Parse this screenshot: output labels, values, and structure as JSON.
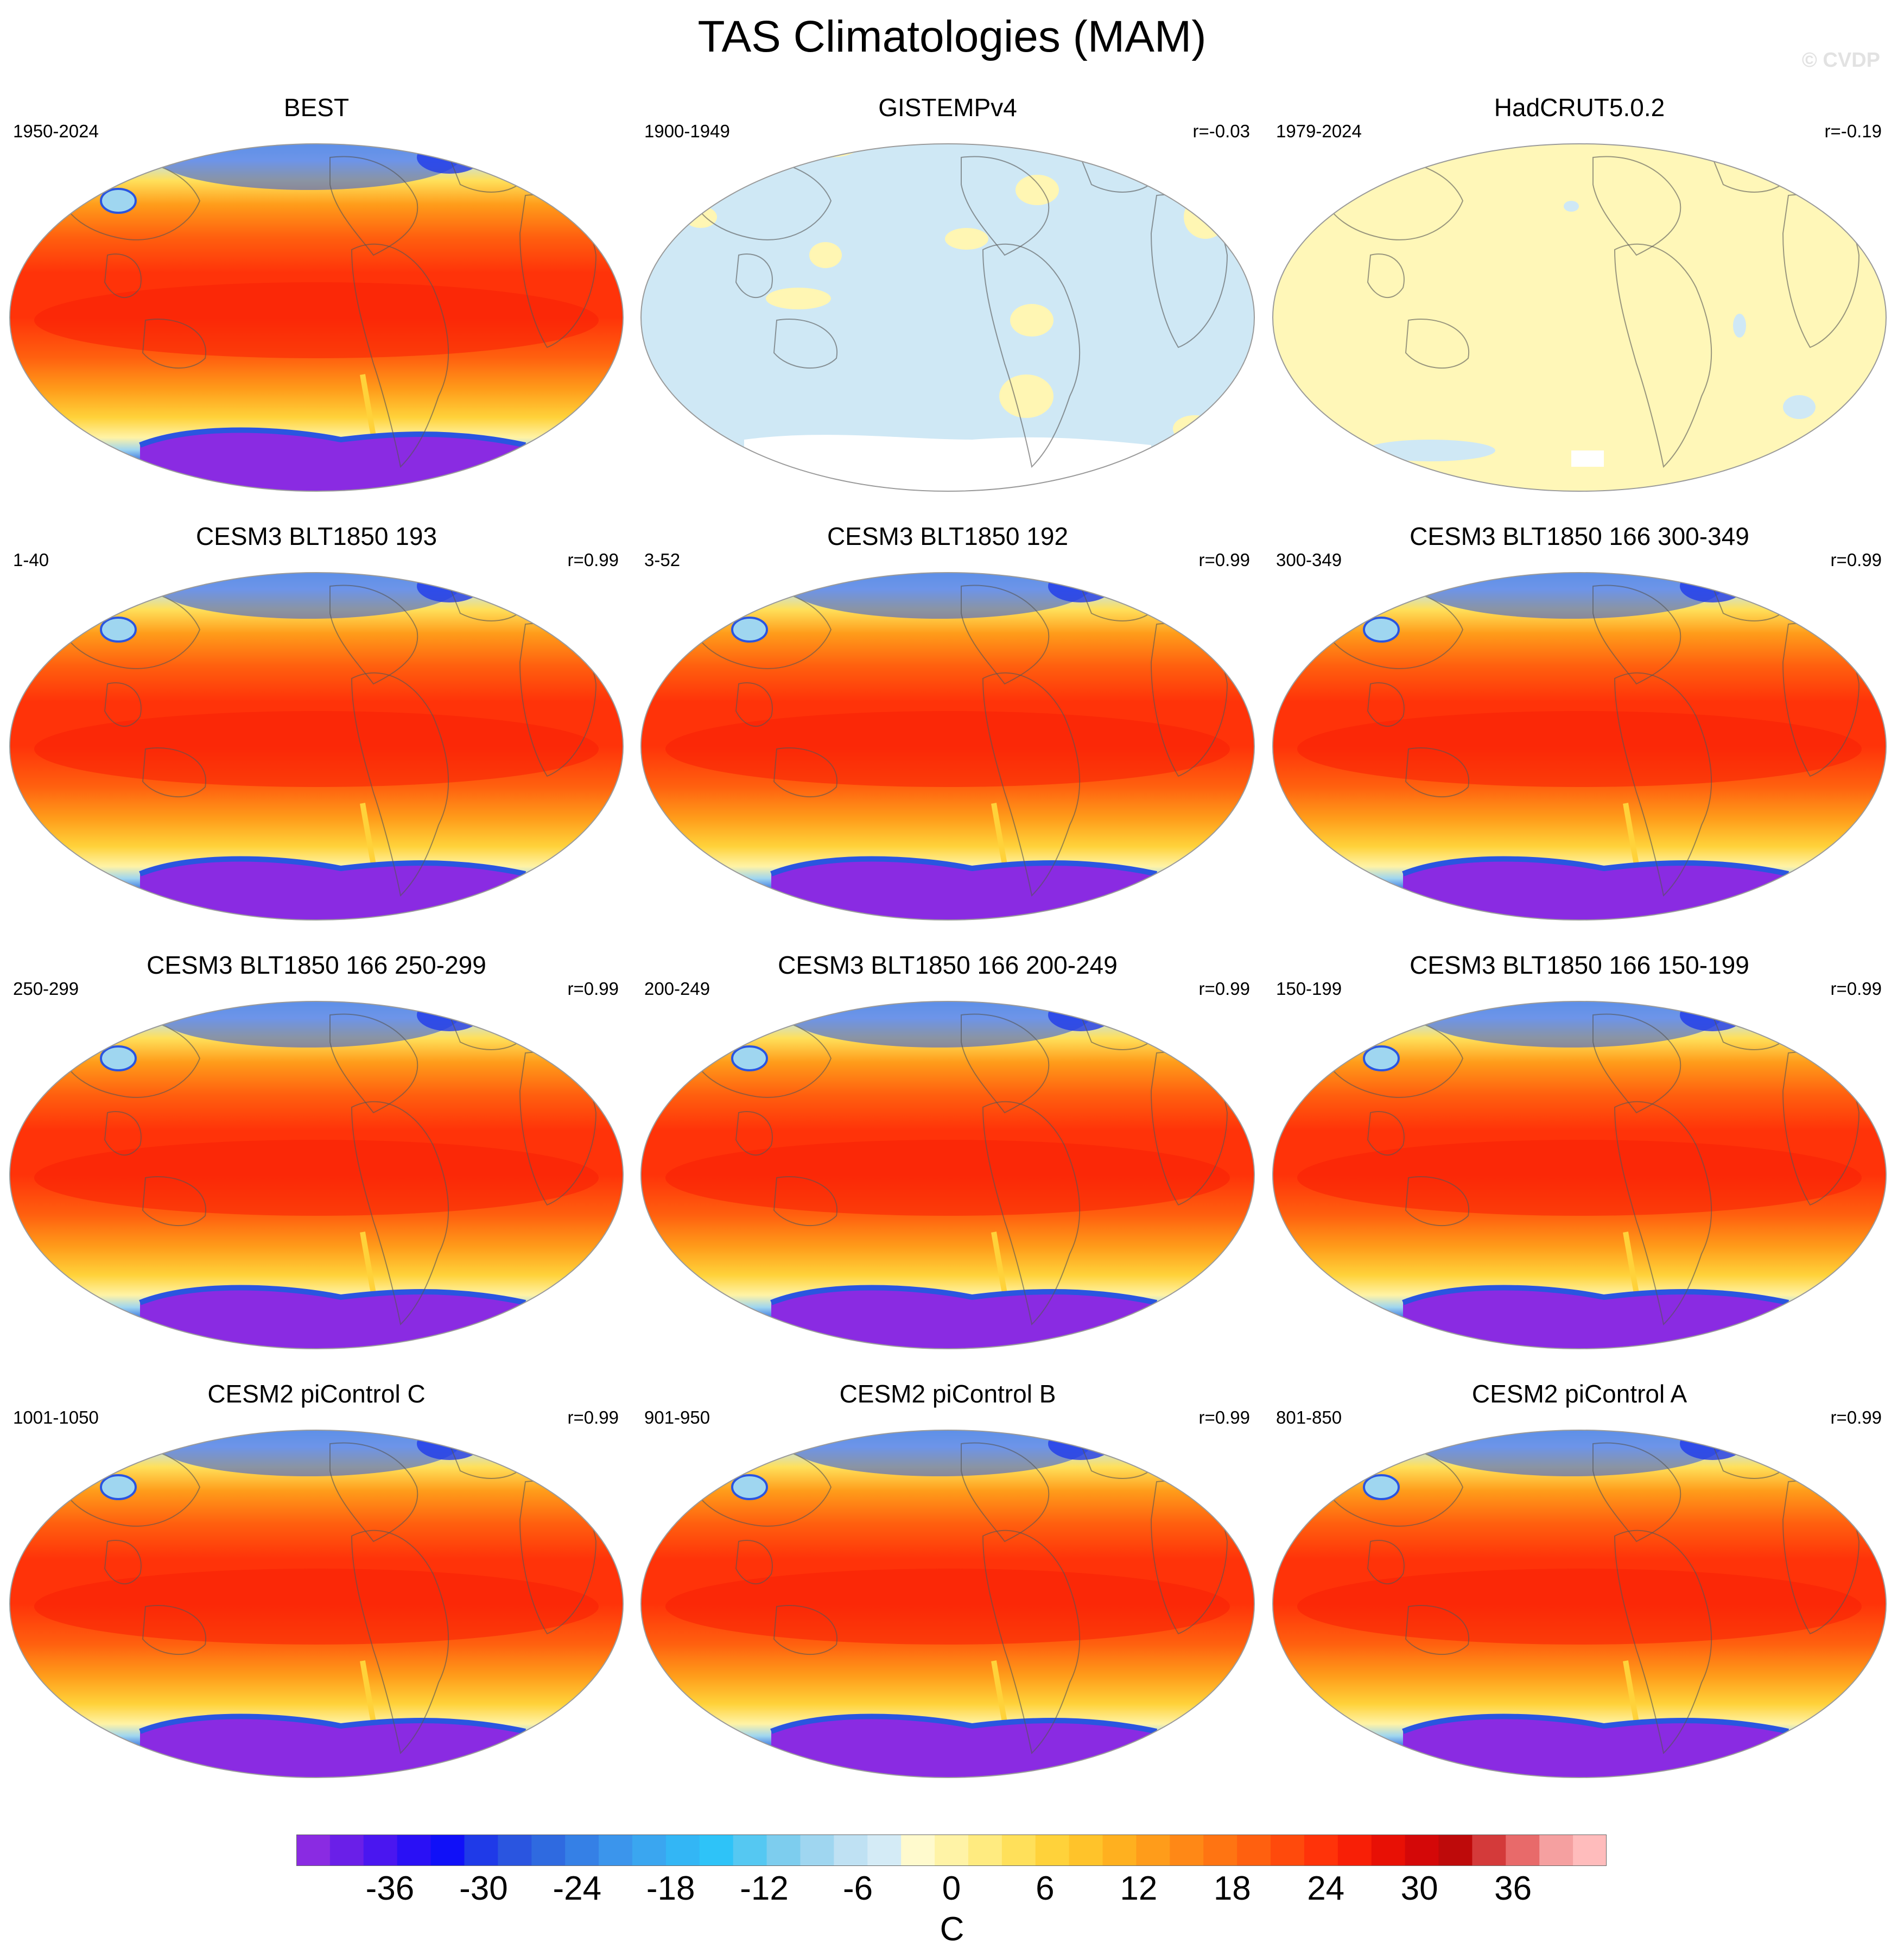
{
  "figure": {
    "title": "TAS Climatologies (MAM)",
    "credit": "© CVDP"
  },
  "panels": [
    {
      "title": "BEST",
      "years": "1950-2024",
      "r": "",
      "field": "obs"
    },
    {
      "title": "GISTEMPv4",
      "years": "1900-1949",
      "r": "r=-0.03",
      "field": "mostlyNegative"
    },
    {
      "title": "HadCRUT5.0.2",
      "years": "1979-2024",
      "r": "r=-0.19",
      "field": "mostlyNeutral"
    },
    {
      "title": "CESM3 BLT1850 193",
      "years": "1-40",
      "r": "r=0.99",
      "field": "model"
    },
    {
      "title": "CESM3 BLT1850 192",
      "years": "3-52",
      "r": "r=0.99",
      "field": "model"
    },
    {
      "title": "CESM3 BLT1850 166 300-349",
      "years": "300-349",
      "r": "r=0.99",
      "field": "model"
    },
    {
      "title": "CESM3 BLT1850 166 250-299",
      "years": "250-299",
      "r": "r=0.99",
      "field": "model"
    },
    {
      "title": "CESM3 BLT1850 166 200-249",
      "years": "200-249",
      "r": "r=0.99",
      "field": "model"
    },
    {
      "title": "CESM3 BLT1850 166 150-199",
      "years": "150-199",
      "r": "r=0.99",
      "field": "model"
    },
    {
      "title": "CESM2 piControl C",
      "years": "1001-1050",
      "r": "r=0.99",
      "field": "model"
    },
    {
      "title": "CESM2 piControl B",
      "years": "901-950",
      "r": "r=0.99",
      "field": "model"
    },
    {
      "title": "CESM2 piControl A",
      "years": "801-850",
      "r": "r=0.99",
      "field": "model"
    }
  ],
  "colorbar": {
    "unit": "C",
    "tick_labels": [
      "-36",
      "-30",
      "-24",
      "-18",
      "-12",
      "-6",
      "0",
      "6",
      "12",
      "18",
      "24",
      "30",
      "36"
    ],
    "tick_values": [
      -36,
      -30,
      -24,
      -18,
      -12,
      -6,
      0,
      6,
      12,
      18,
      24,
      30,
      36
    ],
    "levels_min": -42,
    "levels_max": 42,
    "level_step": 2,
    "colors": [
      "#8a2be2",
      "#6a1fe8",
      "#4a16f0",
      "#2a10f5",
      "#1010f8",
      "#1f3ae8",
      "#2a55e0",
      "#2f6ae0",
      "#3580e6",
      "#3b95ec",
      "#3aa6f0",
      "#33b6f5",
      "#2ec3f8",
      "#55c8f2",
      "#7dcdee",
      "#9fd6f0",
      "#bfe1f3",
      "#d4ebf6",
      "#fffacd",
      "#fff3a6",
      "#ffeb80",
      "#ffe05a",
      "#ffd23a",
      "#ffc32a",
      "#ffb01f",
      "#ff9c1a",
      "#ff8816",
      "#ff7412",
      "#ff600f",
      "#ff4a0c",
      "#ff3309",
      "#f81f06",
      "#e81005",
      "#d40808",
      "#be0a0a",
      "#d43a3a",
      "#e86a6a",
      "#f5a0a0",
      "#ffbcbc"
    ]
  },
  "chart_data": {
    "type": "map",
    "variable": "TAS",
    "season": "MAM",
    "projection": "Robinson",
    "units": "C",
    "contour_min": -42,
    "contour_max": 42,
    "contour_interval": 2
  }
}
